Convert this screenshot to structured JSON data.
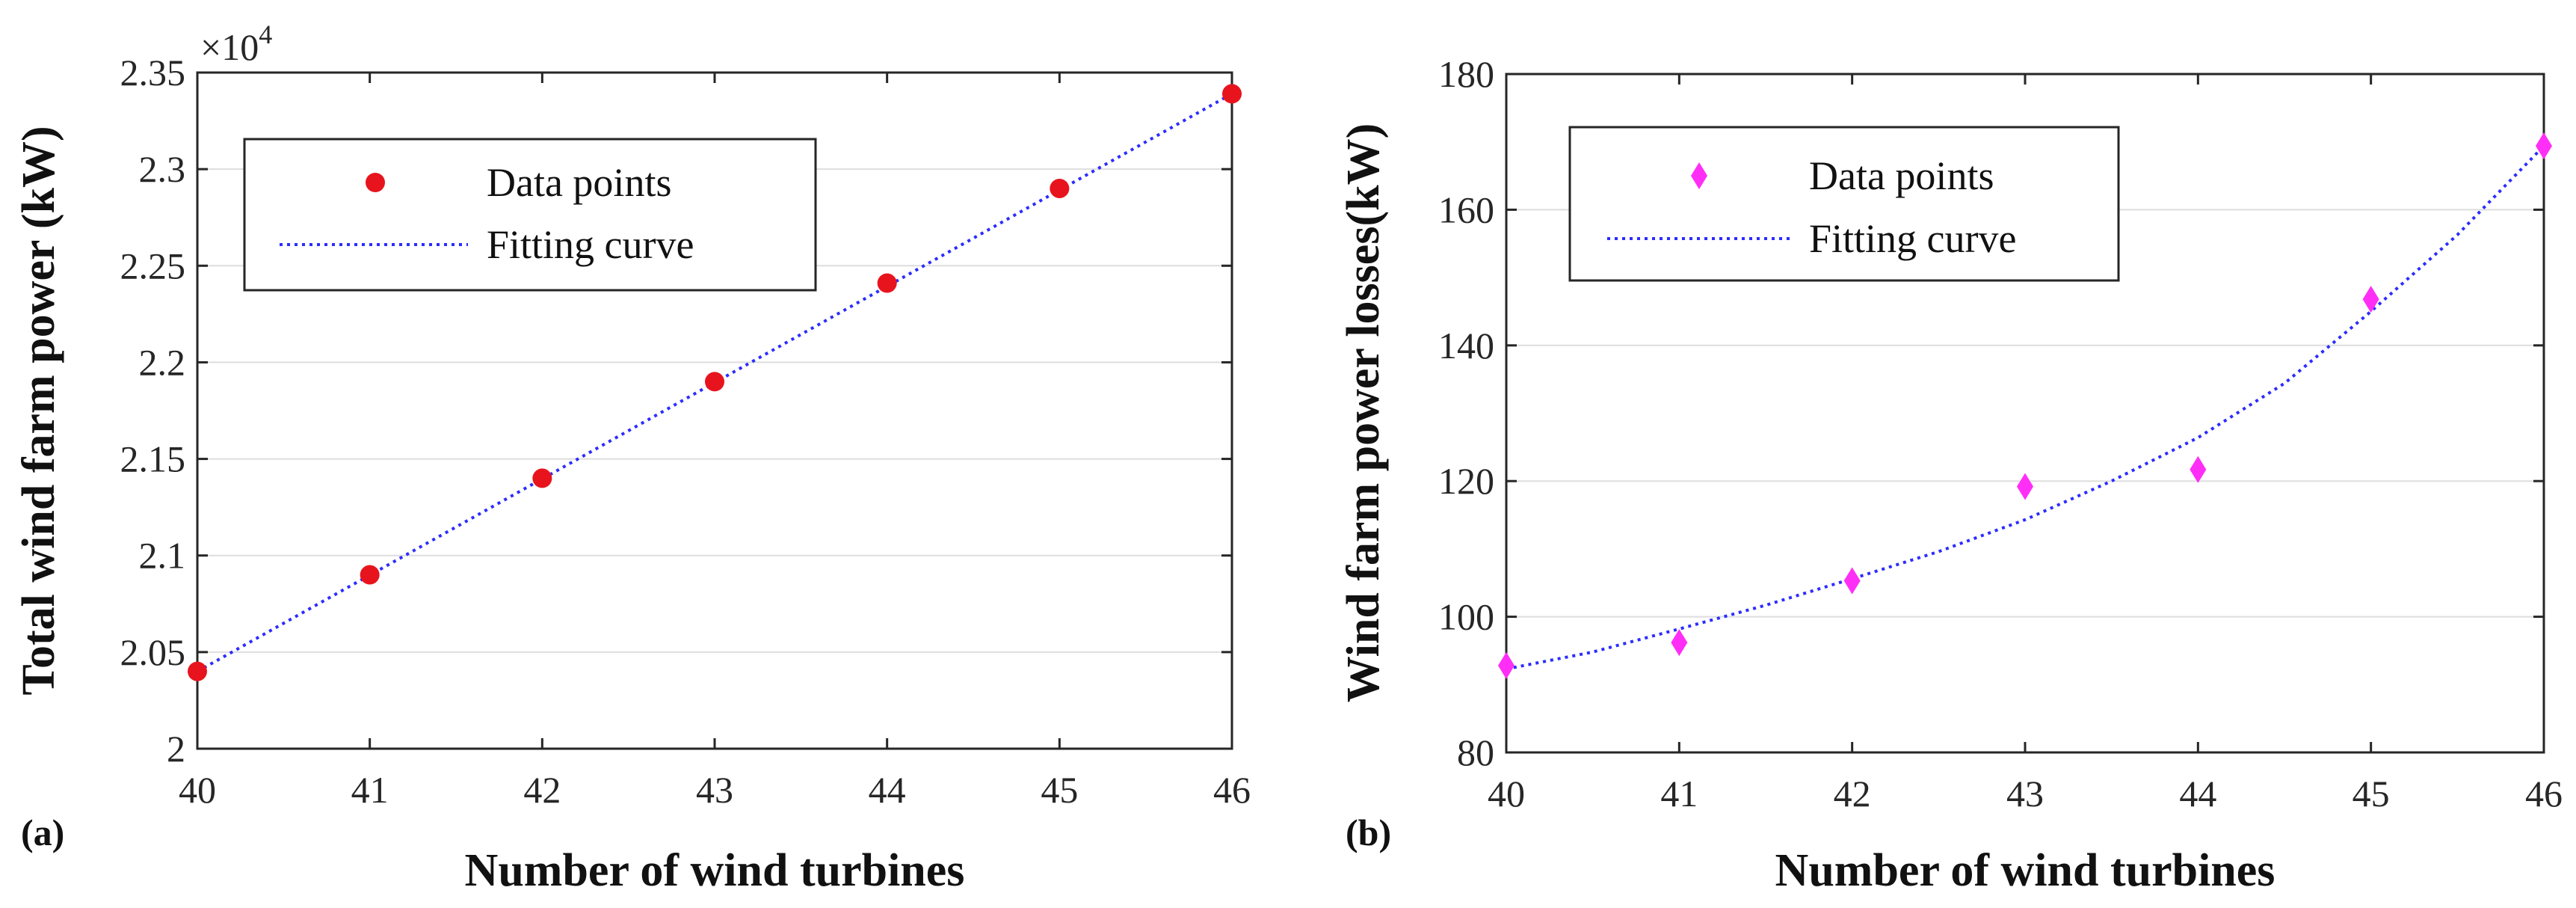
{
  "chart_data": [
    {
      "type": "scatter",
      "panel_label": "(a)",
      "xlabel": "Number of wind turbines",
      "ylabel": "Total wind farm power (kW)",
      "xlim": [
        40,
        46
      ],
      "ylim": [
        2.0,
        2.35
      ],
      "y_multiplier_label": "×10",
      "y_multiplier_exp": "4",
      "grid": "horizontal",
      "x_ticks": [
        "40",
        "41",
        "42",
        "43",
        "44",
        "45",
        "46"
      ],
      "y_ticks": [
        "2",
        "2.05",
        "2.1",
        "2.15",
        "2.2",
        "2.25",
        "2.3",
        "2.35"
      ],
      "legend_position": "top-left",
      "series": [
        {
          "name": "Data points",
          "kind": "markers",
          "marker": "circle",
          "color": "#e8141d",
          "x": [
            40,
            41,
            42,
            43,
            44,
            45,
            46
          ],
          "y": [
            2.04,
            2.09,
            2.14,
            2.19,
            2.241,
            2.29,
            2.339
          ]
        },
        {
          "name": "Fitting curve",
          "kind": "line",
          "style": "dotted",
          "color": "#2c2cff",
          "x": [
            40,
            46
          ],
          "y": [
            2.04,
            2.339
          ]
        }
      ]
    },
    {
      "type": "scatter",
      "panel_label": "(b)",
      "xlabel": "Number of wind turbines",
      "ylabel": "Wind farm power losses(kW)",
      "xlim": [
        40,
        46
      ],
      "ylim": [
        80,
        180
      ],
      "grid": "horizontal",
      "x_ticks": [
        "40",
        "41",
        "42",
        "43",
        "44",
        "45",
        "46"
      ],
      "y_ticks": [
        "80",
        "100",
        "120",
        "140",
        "160",
        "180"
      ],
      "legend_position": "top-left",
      "series": [
        {
          "name": "Data points",
          "kind": "markers",
          "marker": "diamond",
          "color": "#ff2ef7",
          "x": [
            40,
            41,
            42,
            43,
            44,
            45,
            46
          ],
          "y": [
            92.8,
            96.2,
            105.3,
            119.2,
            121.7,
            146.8,
            169.4
          ]
        },
        {
          "name": "Fitting curve",
          "kind": "line",
          "style": "dotted",
          "color": "#2c2cff",
          "x": [
            40,
            40.5,
            41,
            41.5,
            42,
            42.5,
            43,
            43.5,
            44,
            44.5,
            45,
            45.5,
            46
          ],
          "y": [
            92.3,
            94.8,
            98.2,
            101.7,
            105.6,
            109.6,
            114.3,
            120.0,
            126.4,
            134.4,
            145.0,
            156.3,
            169.4
          ]
        }
      ]
    }
  ]
}
